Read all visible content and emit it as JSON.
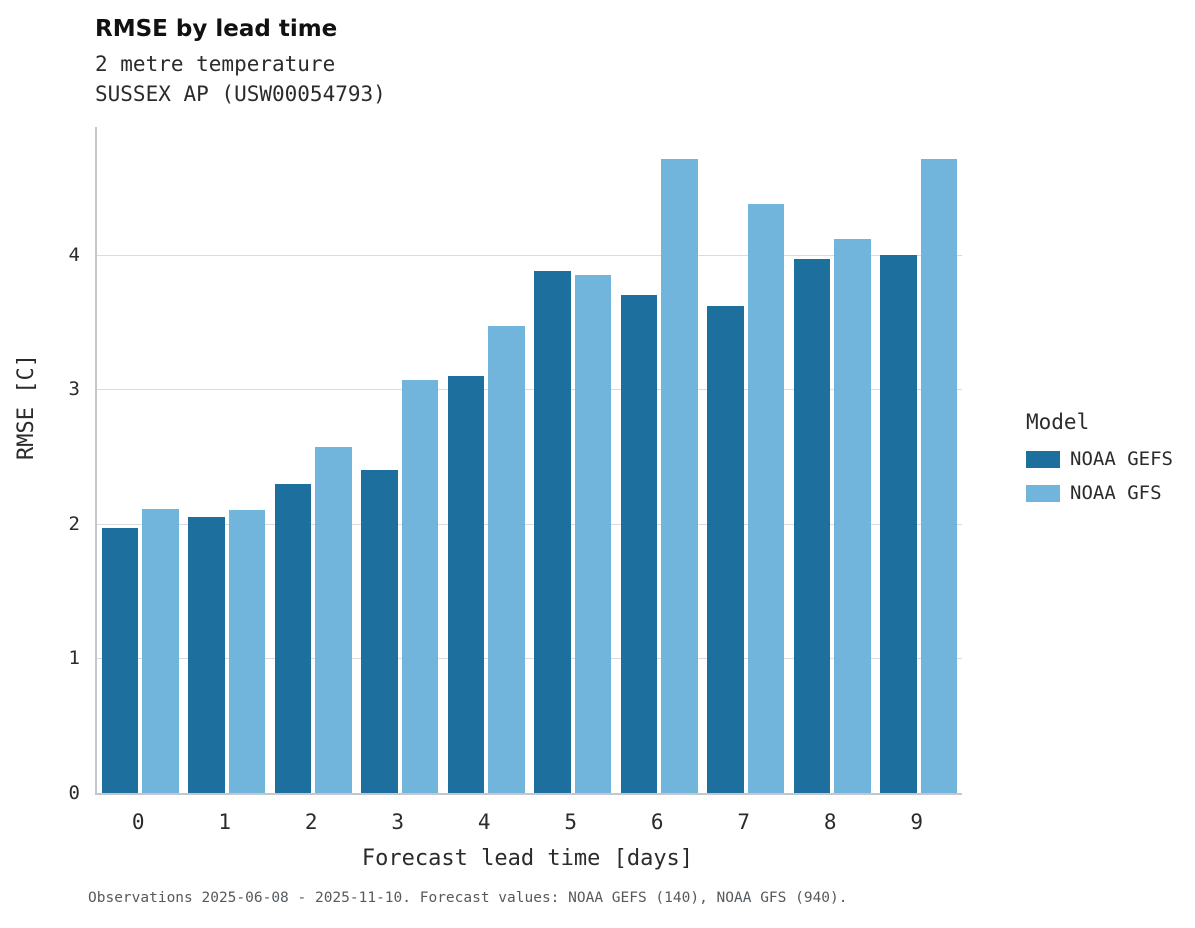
{
  "header": {
    "title": "RMSE by lead time",
    "subtitle1": "2 metre temperature",
    "subtitle2": "SUSSEX AP (USW00054793)"
  },
  "legend": {
    "title": "Model",
    "items": [
      {
        "label": "NOAA GEFS",
        "color": "#1d6f9e"
      },
      {
        "label": "NOAA GFS",
        "color": "#72b5dc"
      }
    ]
  },
  "footer": {
    "note": "Observations 2025-06-08 - 2025-11-10. Forecast values: NOAA GEFS (140), NOAA GFS (940)."
  },
  "chart_data": {
    "type": "bar",
    "title": "RMSE by lead time",
    "subtitle": [
      "2 metre temperature",
      "SUSSEX AP (USW00054793)"
    ],
    "categories": [
      "0",
      "1",
      "2",
      "3",
      "4",
      "5",
      "6",
      "7",
      "8",
      "9"
    ],
    "series": [
      {
        "name": "NOAA GEFS",
        "color": "#1d6f9e",
        "values": [
          1.97,
          2.05,
          2.3,
          2.4,
          3.1,
          3.88,
          3.7,
          3.62,
          3.97,
          4.0
        ]
      },
      {
        "name": "NOAA GFS",
        "color": "#72b5dc",
        "values": [
          2.11,
          2.1,
          2.57,
          3.07,
          3.47,
          3.85,
          4.71,
          4.38,
          4.12,
          4.71
        ]
      }
    ],
    "xlabel": "Forecast lead time [days]",
    "ylabel": "RMSE [C]",
    "ylim": [
      0,
      4.95
    ],
    "yticks": [
      0,
      1,
      2,
      3,
      4
    ],
    "grid": "horizontal",
    "legend_title": "Model",
    "legend_position": "right"
  }
}
